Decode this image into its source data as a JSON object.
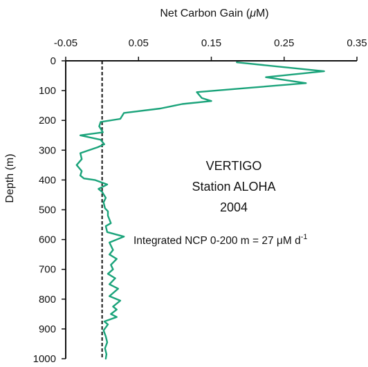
{
  "chart_data": {
    "type": "line",
    "title": "",
    "xlabel_prefix": "Net Carbon Gain (",
    "xlabel_unit": "μ",
    "xlabel_suffix": "M)",
    "ylabel": "Depth (m)",
    "x_axis_position": "top",
    "y_inverted": true,
    "xlim": [
      -0.05,
      0.35
    ],
    "ylim": [
      0,
      1000
    ],
    "x_ticks": [
      -0.05,
      0.05,
      0.15,
      0.25,
      0.35
    ],
    "x_tick_labels": [
      "-0.05",
      "0.05",
      "0.15",
      "0.25",
      "0.35"
    ],
    "y_ticks": [
      0,
      100,
      200,
      300,
      400,
      500,
      600,
      700,
      800,
      900,
      1000
    ],
    "y_tick_labels": [
      "0",
      "100",
      "200",
      "300",
      "400",
      "500",
      "600",
      "700",
      "800",
      "900",
      "1000"
    ],
    "grid": false,
    "reference_line": {
      "x": 0,
      "style": "dashed",
      "color": "#111111"
    },
    "series": [
      {
        "color": "#1aa37a",
        "x": [
          0.185,
          0.305,
          0.225,
          0.28,
          0.13,
          0.137,
          0.15,
          0.11,
          0.08,
          0.03,
          0.025,
          -0.002,
          -0.004,
          0.001,
          -0.03,
          -0.002,
          0.003,
          -0.006,
          -0.03,
          -0.028,
          -0.035,
          -0.028,
          -0.03,
          -0.025,
          -0.01,
          0.007,
          -0.005,
          0.0,
          0.005,
          0.002,
          0.004,
          0.008,
          0.008,
          0.012,
          0.005,
          0.007,
          0.03,
          0.01,
          0.015,
          0.01,
          0.02,
          0.012,
          0.015,
          0.008,
          0.018,
          0.01,
          0.022,
          0.01,
          0.025,
          0.015,
          0.02,
          0.012,
          0.02,
          0.003,
          0.008,
          0.002,
          0.005,
          0.007,
          0.004,
          0.006,
          0.005
        ],
        "y": [
          5,
          35,
          55,
          75,
          105,
          125,
          135,
          145,
          160,
          175,
          195,
          205,
          220,
          240,
          250,
          265,
          280,
          290,
          310,
          330,
          350,
          370,
          385,
          395,
          400,
          415,
          430,
          440,
          460,
          475,
          495,
          505,
          520,
          545,
          555,
          575,
          590,
          610,
          635,
          650,
          665,
          685,
          700,
          715,
          730,
          750,
          765,
          790,
          805,
          825,
          835,
          850,
          860,
          875,
          885,
          905,
          925,
          945,
          965,
          985,
          1000
        ]
      }
    ],
    "annotations": {
      "line1": "VERTIGO",
      "line2": "Station ALOHA",
      "line3": "2004",
      "ncp_main": "Integrated  NCP 0-200 m = 27 μM d",
      "ncp_sup": "-1"
    }
  }
}
